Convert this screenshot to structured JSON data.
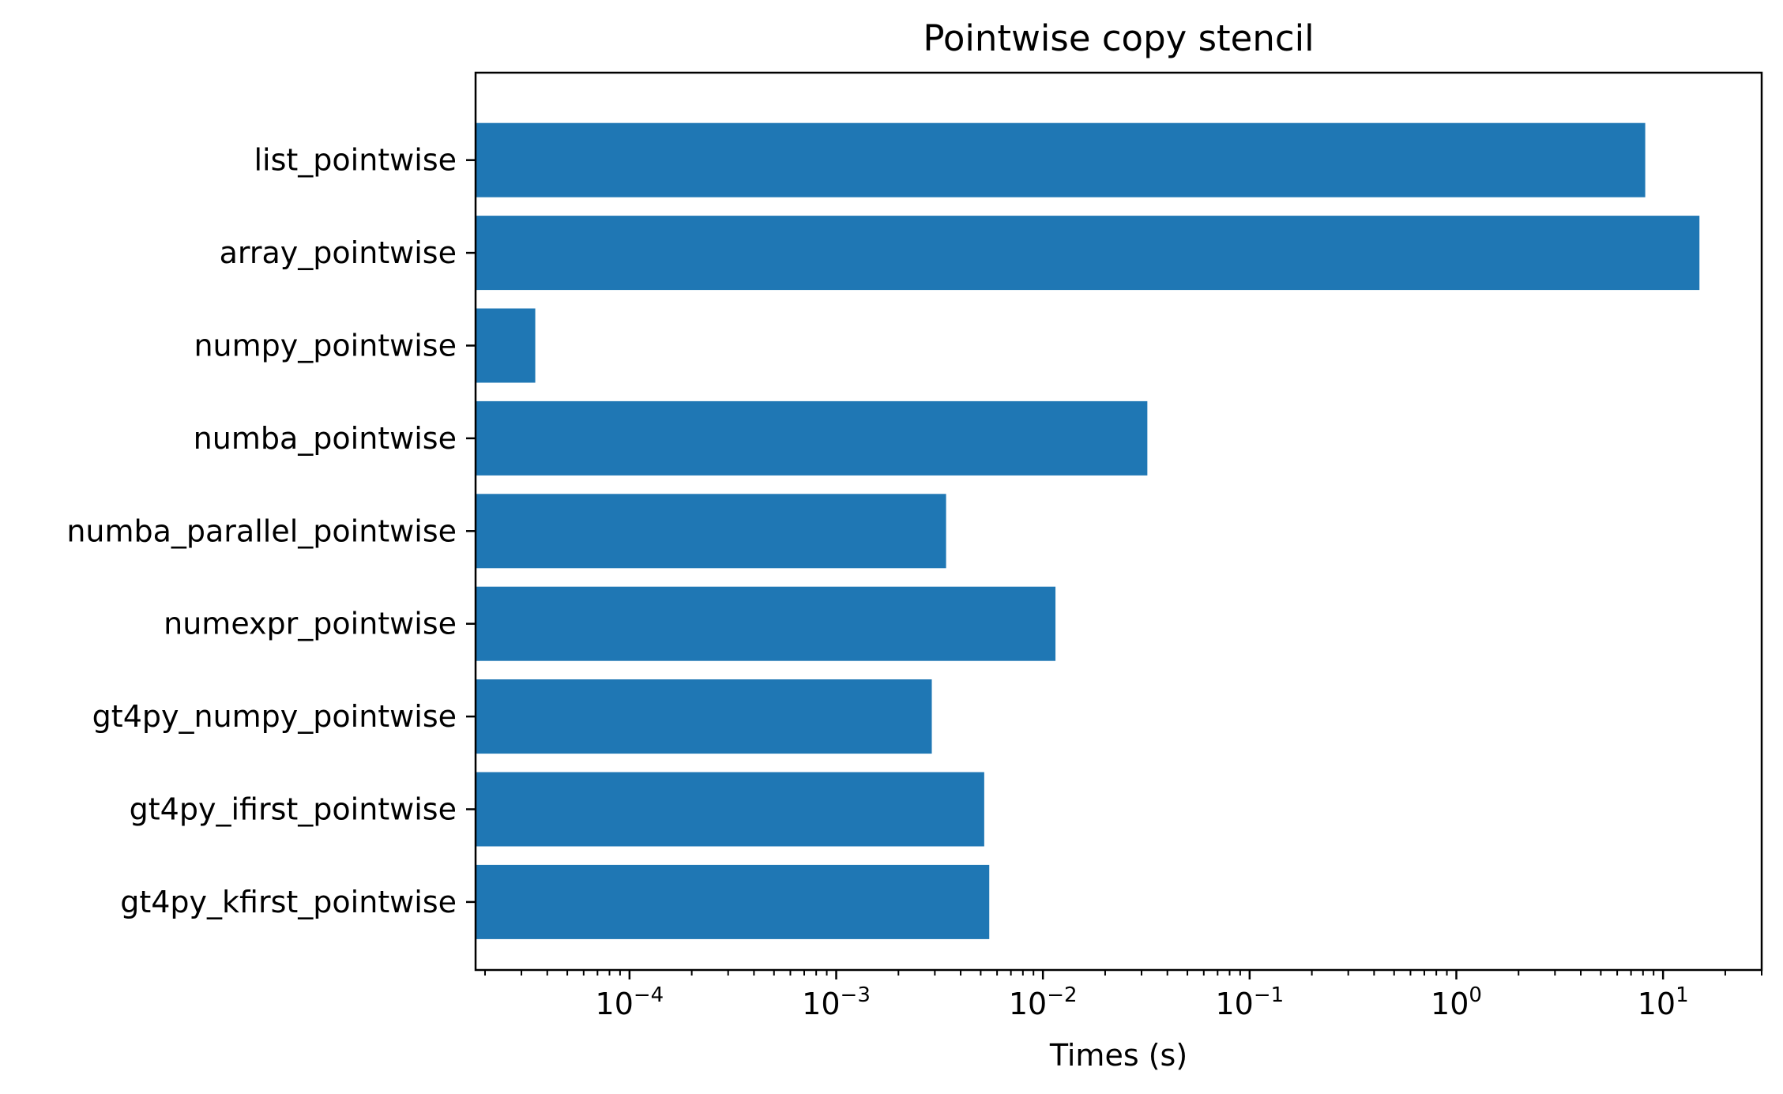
{
  "chart_data": {
    "type": "bar",
    "orientation": "horizontal",
    "title": "Pointwise copy stencil",
    "xlabel": "Times (s)",
    "ylabel": "",
    "x_scale": "log",
    "xlim": [
      1.8e-05,
      30
    ],
    "grid": false,
    "bar_color": "#1f77b4",
    "categories": [
      "list_pointwise",
      "array_pointwise",
      "numpy_pointwise",
      "numba_pointwise",
      "numba_parallel_pointwise",
      "numexpr_pointwise",
      "gt4py_numpy_pointwise",
      "gt4py_ifirst_pointwise",
      "gt4py_kfirst_pointwise"
    ],
    "values": [
      8.2,
      15.0,
      3.5e-05,
      0.032,
      0.0034,
      0.0115,
      0.0029,
      0.0052,
      0.0055
    ],
    "x_ticks": [
      {
        "value": 0.0001,
        "base": "10",
        "exp": "−4"
      },
      {
        "value": 0.001,
        "base": "10",
        "exp": "−3"
      },
      {
        "value": 0.01,
        "base": "10",
        "exp": "−2"
      },
      {
        "value": 0.1,
        "base": "10",
        "exp": "−1"
      },
      {
        "value": 1,
        "base": "10",
        "exp": "0"
      },
      {
        "value": 10,
        "base": "10",
        "exp": "1"
      }
    ]
  }
}
